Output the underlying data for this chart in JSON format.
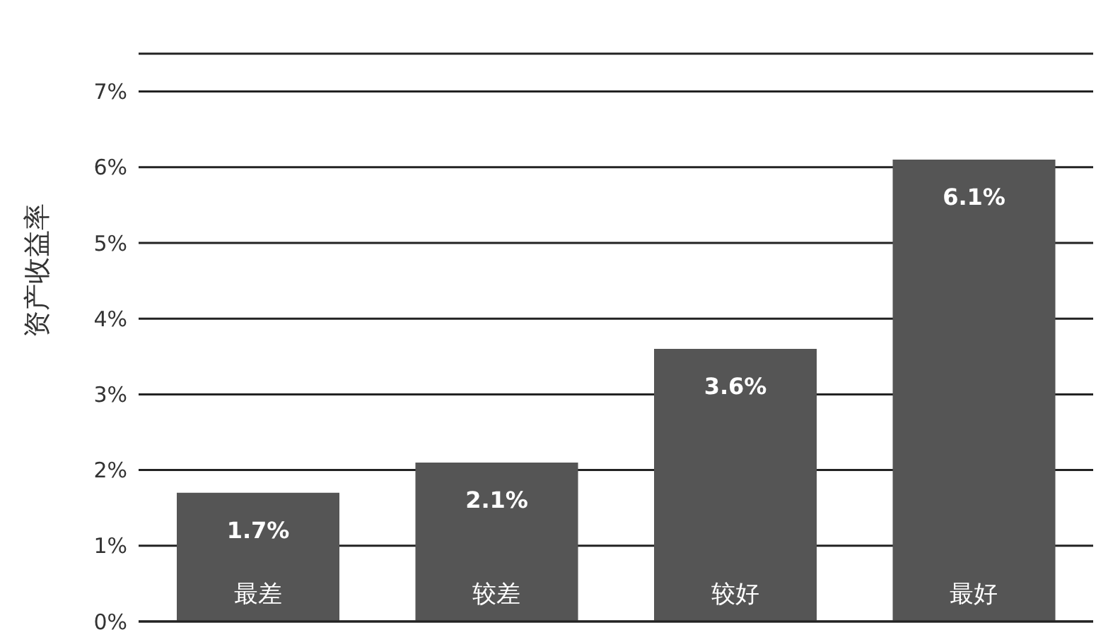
{
  "chart_data": {
    "type": "bar",
    "ylabel": "资产收益率",
    "categories": [
      "最差",
      "较差",
      "较好",
      "最好"
    ],
    "values": [
      1.7,
      2.1,
      3.6,
      6.1
    ],
    "color": "#555555",
    "value_labels": [
      "1.7%",
      "2.1%",
      "3.6%",
      "6.1%"
    ],
    "ylim": [
      0,
      7.5
    ],
    "yticks": [
      {
        "value": 0,
        "label": "0%"
      },
      {
        "value": 1,
        "label": "1%"
      },
      {
        "value": 2,
        "label": "2%"
      },
      {
        "value": 3,
        "label": "3%"
      },
      {
        "value": 4,
        "label": "4%"
      },
      {
        "value": 5,
        "label": "5%"
      },
      {
        "value": 6,
        "label": "6%"
      },
      {
        "value": 7,
        "label": "7%"
      }
    ],
    "grid": "y"
  }
}
